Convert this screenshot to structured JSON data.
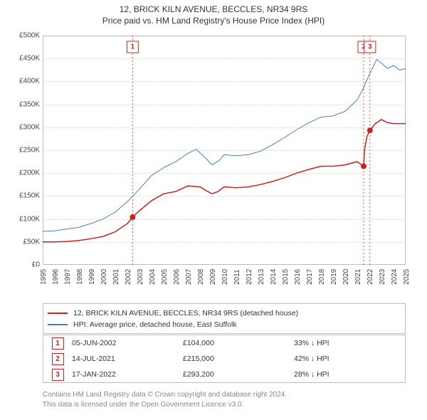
{
  "title_line1": "12, BRICK KILN AVENUE, BECCLES, NR34 9RS",
  "title_line2": "Price paid vs. HM Land Registry's House Price Index (HPI)",
  "chart": {
    "type": "line",
    "x_years": {
      "start": 1995,
      "end": 2025,
      "tick_step": 1
    },
    "y": {
      "min": 0,
      "max": 500000,
      "tick_step": 50000,
      "prefix": "£",
      "suffix_k": "K"
    },
    "background_color": "#ffffff",
    "grid_color": "#d9d9d9",
    "border_color": "#bdbdbd",
    "series": [
      {
        "name": "12, BRICK KILN AVENUE, BECCLES, NR34 9RS (detached house)",
        "color": "#cc2121",
        "line_width": 1.5,
        "points": [
          [
            1995.0,
            50000
          ],
          [
            1996.0,
            50000
          ],
          [
            1997.0,
            51000
          ],
          [
            1998.0,
            53000
          ],
          [
            1999.0,
            57000
          ],
          [
            2000.0,
            62000
          ],
          [
            2001.0,
            72000
          ],
          [
            2002.0,
            90000
          ],
          [
            2002.43,
            104000
          ],
          [
            2003.0,
            118000
          ],
          [
            2004.0,
            140000
          ],
          [
            2005.0,
            155000
          ],
          [
            2006.0,
            160000
          ],
          [
            2007.0,
            172000
          ],
          [
            2008.0,
            170000
          ],
          [
            2008.5,
            162000
          ],
          [
            2009.0,
            155000
          ],
          [
            2009.5,
            160000
          ],
          [
            2010.0,
            170000
          ],
          [
            2011.0,
            168000
          ],
          [
            2012.0,
            170000
          ],
          [
            2013.0,
            175000
          ],
          [
            2014.0,
            182000
          ],
          [
            2015.0,
            190000
          ],
          [
            2016.0,
            200000
          ],
          [
            2017.0,
            208000
          ],
          [
            2018.0,
            215000
          ],
          [
            2019.0,
            215000
          ],
          [
            2020.0,
            218000
          ],
          [
            2021.0,
            225000
          ],
          [
            2021.53,
            215000
          ],
          [
            2021.6,
            250000
          ],
          [
            2021.8,
            280000
          ],
          [
            2022.05,
            293200
          ],
          [
            2022.5,
            308000
          ],
          [
            2023.0,
            317000
          ],
          [
            2023.5,
            310000
          ],
          [
            2024.0,
            308000
          ],
          [
            2024.6,
            308000
          ],
          [
            2025.0,
            308000
          ]
        ]
      },
      {
        "name": "HPI: Average price, detached house, East Suffolk",
        "color": "#4a7dc0",
        "line_width": 1.0,
        "points": [
          [
            1995.0,
            73000
          ],
          [
            1996.0,
            74000
          ],
          [
            1997.0,
            78000
          ],
          [
            1998.0,
            82000
          ],
          [
            1999.0,
            90000
          ],
          [
            2000.0,
            100000
          ],
          [
            2001.0,
            115000
          ],
          [
            2002.0,
            138000
          ],
          [
            2003.0,
            165000
          ],
          [
            2004.0,
            195000
          ],
          [
            2005.0,
            212000
          ],
          [
            2006.0,
            225000
          ],
          [
            2007.0,
            243000
          ],
          [
            2007.7,
            252000
          ],
          [
            2008.5,
            232000
          ],
          [
            2009.0,
            218000
          ],
          [
            2009.6,
            228000
          ],
          [
            2010.0,
            240000
          ],
          [
            2011.0,
            238000
          ],
          [
            2012.0,
            240000
          ],
          [
            2013.0,
            248000
          ],
          [
            2014.0,
            262000
          ],
          [
            2015.0,
            278000
          ],
          [
            2016.0,
            295000
          ],
          [
            2017.0,
            310000
          ],
          [
            2018.0,
            322000
          ],
          [
            2019.0,
            325000
          ],
          [
            2020.0,
            335000
          ],
          [
            2021.0,
            360000
          ],
          [
            2021.5,
            385000
          ],
          [
            2022.0,
            415000
          ],
          [
            2022.6,
            448000
          ],
          [
            2023.0,
            440000
          ],
          [
            2023.5,
            428000
          ],
          [
            2024.0,
            435000
          ],
          [
            2024.5,
            425000
          ],
          [
            2025.0,
            428000
          ]
        ]
      }
    ],
    "sale_markers": [
      {
        "n": 1,
        "x": 2002.43,
        "y": 104000
      },
      {
        "n": 2,
        "x": 2021.53,
        "y": 215000
      },
      {
        "n": 3,
        "x": 2022.05,
        "y": 293200
      }
    ]
  },
  "legend": {
    "border_color": "#bdbdbd",
    "items": [
      {
        "color": "#cc2121",
        "label": "12, BRICK KILN AVENUE, BECCLES, NR34 9RS (detached house)"
      },
      {
        "color": "#4a7dc0",
        "label": "HPI: Average price, detached house, East Suffolk"
      }
    ]
  },
  "datarows": {
    "border_color": "#bdbdbd",
    "box_color": "#cc2121",
    "arrow": "↓",
    "rows": [
      {
        "n": "1",
        "date": "05-JUN-2002",
        "price": "£104,000",
        "delta": "33% ↓ HPI"
      },
      {
        "n": "2",
        "date": "14-JUL-2021",
        "price": "£215,000",
        "delta": "42% ↓ HPI"
      },
      {
        "n": "3",
        "date": "17-JAN-2022",
        "price": "£293,200",
        "delta": "28% ↓ HPI"
      }
    ]
  },
  "credit_line1": "Contains HM Land Registry data © Crown copyright and database right 2024.",
  "credit_line2": "This data is licensed under the Open Government Licence v3.0."
}
